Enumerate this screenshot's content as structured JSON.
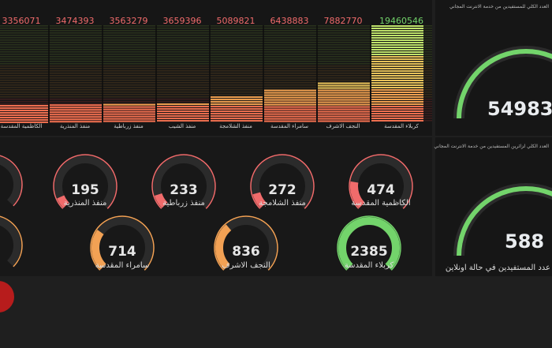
{
  "bar_chart": {
    "series_values": [
      "3356071",
      "3474393",
      "3563279",
      "3659396",
      "5089821",
      "6438883",
      "7882770",
      "19460546"
    ],
    "category_labels": [
      "الكاظمية المقدسة",
      "منفذ المنذرية",
      "منفذ زرباطية",
      "منفذ الشيب",
      "منفذ الشلامجة",
      "سامراء المقدسة",
      "النجف الاشرف",
      "كربلاء المقدسة"
    ]
  },
  "chart_data": {
    "type": "bar",
    "categories": [
      "الكاظمية المقدسة",
      "منفذ المنذرية",
      "منفذ زرباطية",
      "منفذ الشيب",
      "منفذ الشلامجة",
      "سامراء المقدسة",
      "النجف الاشرف",
      "كربلاء المقدسة"
    ],
    "values": [
      3356071,
      3474393,
      3563279,
      3659396,
      5089821,
      6438883,
      7882770,
      19460546
    ],
    "ylim": [
      0,
      19460546
    ]
  },
  "gauges": {
    "row1": [
      {
        "value": "195",
        "label": "منفذ المنذرية",
        "color": "#f06b6b",
        "fraction": 0.08
      },
      {
        "value": "233",
        "label": "منفذ زرباطية",
        "color": "#f06b6b",
        "fraction": 0.1
      },
      {
        "value": "272",
        "label": "منفذ الشلامجة",
        "color": "#f06b6b",
        "fraction": 0.11
      },
      {
        "value": "474",
        "label": "الكاظمية المقدسة",
        "color": "#f06b6b",
        "fraction": 0.2
      }
    ],
    "row2": [
      {
        "value": "714",
        "label": "سامراء المقدسة",
        "color": "#f2a154",
        "fraction": 0.3
      },
      {
        "value": "836",
        "label": "النجف الاشرف",
        "color": "#f2a154",
        "fraction": 0.35
      },
      {
        "value": "2385",
        "label": "كربلاء المقدسة",
        "color": "#73d46b",
        "fraction": 1.0
      }
    ]
  },
  "side": {
    "top_title": "العدد الكلي للمستفيدين من خدمة الانترنت المجاني",
    "top_value": "54983",
    "bottom_title": "العدد الكلي لزائرين المستفيدين من خدمة الانترنت المجاني",
    "bottom_value": "588",
    "bottom_label": "عدد المستفيدين في حالة اونلاين"
  },
  "colors": {
    "red": "#f06b6b",
    "orange": "#f2a154",
    "green": "#73d46b",
    "track": "#2b2b2b"
  }
}
